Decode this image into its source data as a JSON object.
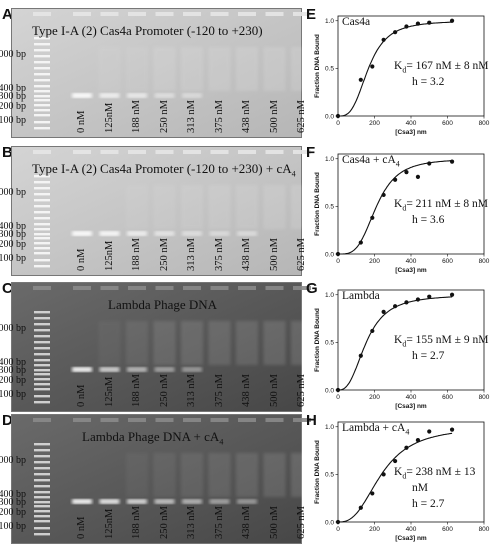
{
  "panels": [
    {
      "letter": "A",
      "title": "Type I-A (2) Cas4a Promoter  (-120 to +230)",
      "title_sub": "",
      "gel_tone": "light",
      "ladder_labels": [
        "1000 bp",
        "400 bp",
        "300 bp",
        "200 bp",
        "100 bp"
      ],
      "lanes": [
        "0 nM",
        "125nM",
        "188 nM",
        "250 nM",
        "313 nM",
        "375 nM",
        "438 nM",
        "500 nM",
        "625 nM"
      ],
      "fit": {
        "letter": "E",
        "title": "Cas4a",
        "title_sub": "",
        "kd_text": "= 167 nM ± 8 nM",
        "h_text": "h = 3.2",
        "kd": 167,
        "h": 3.2,
        "x": [
          0,
          125,
          188,
          250,
          313,
          375,
          438,
          500,
          625
        ],
        "y": [
          0.0,
          0.38,
          0.52,
          0.8,
          0.88,
          0.94,
          0.97,
          0.98,
          1.0
        ]
      }
    },
    {
      "letter": "B",
      "title": "Type I-A (2) Cas4a Promoter  (-120 to +230) + cA",
      "title_sub": "4",
      "gel_tone": "light",
      "ladder_labels": [
        "1000 bp",
        "400 bp",
        "300 bp",
        "200 bp",
        "100 bp"
      ],
      "lanes": [
        "0 nM",
        "125nM",
        "188 nM",
        "250 nM",
        "313 nM",
        "375 nM",
        "438 nM",
        "500 nM",
        "625 nM"
      ],
      "fit": {
        "letter": "F",
        "title": "Cas4a + cA",
        "title_sub": "4",
        "kd_text": "= 211 nM ± 8 nM",
        "h_text": "h = 3.6",
        "kd": 211,
        "h": 3.6,
        "x": [
          0,
          125,
          188,
          250,
          313,
          375,
          438,
          500,
          625
        ],
        "y": [
          0.0,
          0.12,
          0.38,
          0.62,
          0.78,
          0.86,
          0.81,
          0.95,
          0.97
        ]
      }
    },
    {
      "letter": "C",
      "title": "Lambda Phage DNA",
      "title_sub": "",
      "gel_tone": "dark",
      "ladder_labels": [
        "1000 bp",
        "400 bp",
        "300 bp",
        "200 bp",
        "100 bp"
      ],
      "lanes": [
        "0 nM",
        "125nM",
        "188 nM",
        "250 nM",
        "313 nM",
        "375 nM",
        "438 nM",
        "500 nM",
        "625 nM"
      ],
      "fit": {
        "letter": "G",
        "title": "Lambda",
        "title_sub": "",
        "kd_text": "= 155 nM ± 9 nM",
        "h_text": "h = 2.7",
        "kd": 155,
        "h": 2.7,
        "x": [
          0,
          125,
          188,
          250,
          313,
          375,
          438,
          500,
          625
        ],
        "y": [
          0.0,
          0.36,
          0.62,
          0.82,
          0.88,
          0.92,
          0.95,
          0.98,
          1.0
        ]
      }
    },
    {
      "letter": "D",
      "title": "Lambda Phage DNA + cA",
      "title_sub": "4",
      "gel_tone": "dark",
      "ladder_labels": [
        "1000 bp",
        "400 bp",
        "300 bp",
        "200 bp",
        "100 bp"
      ],
      "lanes": [
        "0 nM",
        "125nM",
        "188 nM",
        "250 nM",
        "313 nM",
        "375 nM",
        "438 nM",
        "500 nM",
        "625 nM"
      ],
      "fit": {
        "letter": "H",
        "title": "Lambda + cA",
        "title_sub": "4",
        "kd_text": "= 238 nM ± 13",
        "kd_text2": "nM",
        "h_text": "h = 2.7",
        "kd": 238,
        "h": 2.7,
        "x": [
          0,
          125,
          188,
          250,
          313,
          375,
          438,
          500,
          625
        ],
        "y": [
          0.0,
          0.15,
          0.3,
          0.5,
          0.64,
          0.78,
          0.86,
          0.95,
          0.97
        ]
      }
    }
  ],
  "axes": {
    "xlabel": "[Csa3] nm",
    "ylabel": "Fraction DNA Bound",
    "kd_symbol": "K",
    "kd_sub": "d",
    "xticks": [
      0,
      200,
      400,
      600,
      800
    ],
    "yticks": [
      "0.0",
      "0.5",
      "1.0"
    ],
    "xlim": [
      0,
      800
    ],
    "ylim": [
      0,
      1.05
    ]
  },
  "colors": {
    "gel_light": "#c4c4c4",
    "gel_dark": "#5a5a5a",
    "band_light": "#ffffff",
    "curve": "#111111"
  }
}
